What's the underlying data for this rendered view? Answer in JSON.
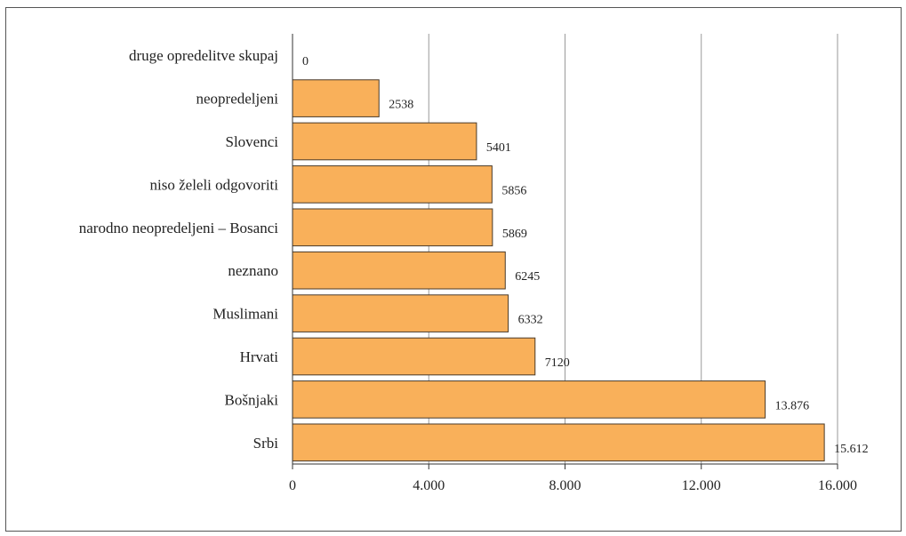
{
  "chart_data": {
    "type": "bar",
    "orientation": "horizontal",
    "categories": [
      "druge opredelitve skupaj",
      "neopredeljeni",
      "Slovenci",
      "niso želeli odgovoriti",
      "narodno neopredeljeni – Bosanci",
      "neznano",
      "Muslimani",
      "Hrvati",
      "Bošnjaki",
      "Srbi"
    ],
    "values": [
      0,
      2538,
      5401,
      5856,
      5869,
      6245,
      6332,
      7120,
      13876,
      15612
    ],
    "value_labels": [
      "0",
      "2538",
      "5401",
      "5856",
      "5869",
      "6245",
      "6332",
      "7120",
      "13.876",
      "15.612"
    ],
    "xlim": [
      0,
      16000
    ],
    "x_ticks": [
      0,
      4000,
      8000,
      12000,
      16000
    ],
    "x_tick_labels": [
      "0",
      "4.000",
      "8.000",
      "12.000",
      "16.000"
    ],
    "grid": "vertical",
    "legend": "none",
    "title": "",
    "xlabel": "",
    "ylabel": "",
    "colors": {
      "bar_fill": "#F9B05A",
      "bar_stroke": "#4a3a28",
      "grid": "#9a9a9a",
      "axis": "#333333"
    }
  }
}
